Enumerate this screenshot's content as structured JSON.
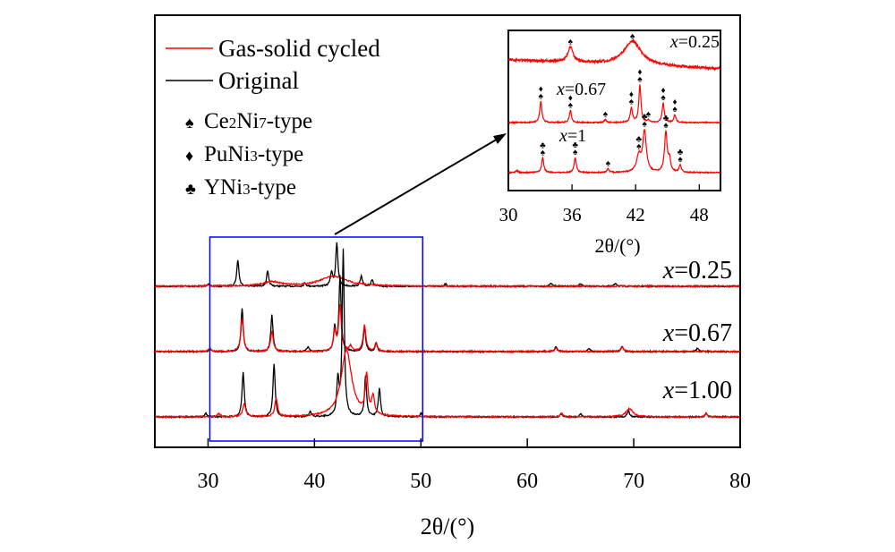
{
  "chart_data": [
    {
      "type": "line",
      "xlabel": "2θ/(°)",
      "xlim": [
        25,
        80
      ],
      "xticks": [
        30,
        40,
        50,
        60,
        70,
        80
      ],
      "y_units": "arbitrary intensity (offset per sample, no axis)",
      "grid": false,
      "legend": {
        "placement": "top-left",
        "entries": [
          {
            "name": "Gas-solid cycled",
            "color": "#ff0000"
          },
          {
            "name": "Original",
            "color": "#000000"
          }
        ]
      },
      "phase_legend": [
        {
          "symbol": "♠",
          "label_main": "Ce",
          "sub1": "2",
          "label_mid": "Ni",
          "sub2": "7",
          "label_end": "-type"
        },
        {
          "symbol": "♦",
          "label_main": "PuNi",
          "sub1": "3",
          "label_mid": "",
          "sub2": "",
          "label_end": "-type"
        },
        {
          "symbol": "♣",
          "label_main": "YNi",
          "sub1": "3",
          "label_mid": "",
          "sub2": "",
          "label_end": "-type"
        }
      ],
      "highlight_box": {
        "x_range": [
          30,
          50
        ],
        "color": "#0000ff"
      },
      "samples": [
        {
          "label_var": "x",
          "label_val": "=0.25",
          "original_peaks": [
            [
              30,
              1.5
            ],
            [
              32.8,
              16
            ],
            [
              35.6,
              9
            ],
            [
              39.1,
              2
            ],
            [
              41.6,
              8
            ],
            [
              42.1,
              26
            ],
            [
              44.4,
              6
            ],
            [
              45.4,
              4
            ],
            [
              52.3,
              1.5
            ],
            [
              62.2,
              2
            ],
            [
              65,
              1.5
            ],
            [
              68.3,
              2
            ]
          ],
          "cycled_peaks": [
            [
              30,
              1
            ],
            [
              36,
              2.5,
              1
            ],
            [
              41.8,
              6,
              1.5
            ]
          ]
        },
        {
          "label_var": "x",
          "label_val": "=0.67",
          "original_peaks": [
            [
              30.2,
              2
            ],
            [
              33.2,
              26
            ],
            [
              36.0,
              22
            ],
            [
              39.4,
              3
            ],
            [
              41.9,
              14
            ],
            [
              42.4,
              45
            ],
            [
              44.7,
              15
            ],
            [
              45.8,
              5
            ],
            [
              62.7,
              3
            ],
            [
              65.8,
              2
            ],
            [
              68.9,
              3
            ],
            [
              76,
              2
            ]
          ],
          "cycled_peaks": [
            [
              30.2,
              2
            ],
            [
              33.2,
              20
            ],
            [
              36.0,
              12
            ],
            [
              41.9,
              12
            ],
            [
              42.4,
              27
            ],
            [
              43.4,
              3
            ],
            [
              44.7,
              16
            ],
            [
              45.8,
              5
            ],
            [
              62.7,
              2
            ],
            [
              68.9,
              3
            ]
          ]
        },
        {
          "label_var": "x",
          "label_val": "=1.00",
          "original_peaks": [
            [
              29.8,
              2
            ],
            [
              33.3,
              27
            ],
            [
              36.2,
              32
            ],
            [
              39.6,
              3
            ],
            [
              42.2,
              21
            ],
            [
              42.7,
              100
            ],
            [
              44.8,
              24
            ],
            [
              46.1,
              17
            ],
            [
              50,
              2
            ],
            [
              63.2,
              2
            ],
            [
              65,
              2
            ],
            [
              69.5,
              4
            ],
            [
              76.8,
              2
            ]
          ],
          "cycled_peaks": [
            [
              31,
              2
            ],
            [
              33.4,
              8
            ],
            [
              36.4,
              11
            ],
            [
              43.0,
              40,
              0.6
            ],
            [
              44.9,
              23
            ],
            [
              45.5,
              11
            ],
            [
              63.2,
              2
            ],
            [
              69.6,
              5,
              0.4
            ],
            [
              76.8,
              2
            ]
          ]
        }
      ]
    },
    {
      "type": "line",
      "title": "inset",
      "xlabel": "2θ/(°)",
      "xlim": [
        30,
        50
      ],
      "xticks": [
        30,
        36,
        42,
        48
      ],
      "color": "#ff0000",
      "samples": [
        {
          "label_var": "x",
          "label_val": "=0.25",
          "peaks": [
            [
              35.85,
              37,
              0.3
            ],
            [
              41.7,
              59,
              1.0
            ]
          ],
          "markers": [
            [
              35.85,
              "♠"
            ],
            [
              41.7,
              "♠"
            ]
          ]
        },
        {
          "label_var": "x",
          "label_val": "=0.67",
          "peaks": [
            [
              33.06,
              52
            ],
            [
              35.85,
              30
            ],
            [
              39.15,
              7
            ],
            [
              41.6,
              37
            ],
            [
              42.4,
              93
            ],
            [
              43.2,
              5
            ],
            [
              44.6,
              48
            ],
            [
              45.7,
              19
            ]
          ],
          "markers": [
            [
              33.06,
              "♦♠"
            ],
            [
              35.85,
              "♦♠"
            ],
            [
              39.15,
              "♠"
            ],
            [
              41.6,
              "♦♠"
            ],
            [
              42.4,
              "♦♠"
            ],
            [
              43.2,
              "♠"
            ],
            [
              44.6,
              "♦♠"
            ],
            [
              45.7,
              "♦♠"
            ]
          ]
        },
        {
          "label_var": "x",
          "label_val": "=1",
          "peaks": [
            [
              30.8,
              5
            ],
            [
              33.24,
              37
            ],
            [
              36.3,
              37
            ],
            [
              39.4,
              9
            ],
            [
              42.3,
              40,
              0.25
            ],
            [
              42.84,
              100,
              0.2
            ],
            [
              44.85,
              100,
              0.15
            ],
            [
              45.2,
              30
            ],
            [
              46.2,
              18
            ]
          ],
          "markers": [
            [
              33.24,
              "♣♠"
            ],
            [
              36.3,
              "♣♠"
            ],
            [
              39.4,
              "♠"
            ],
            [
              42.3,
              "♣♠"
            ],
            [
              42.84,
              "♣♠"
            ],
            [
              44.85,
              "♣♠"
            ],
            [
              46.2,
              "♣♠"
            ]
          ]
        }
      ]
    }
  ]
}
